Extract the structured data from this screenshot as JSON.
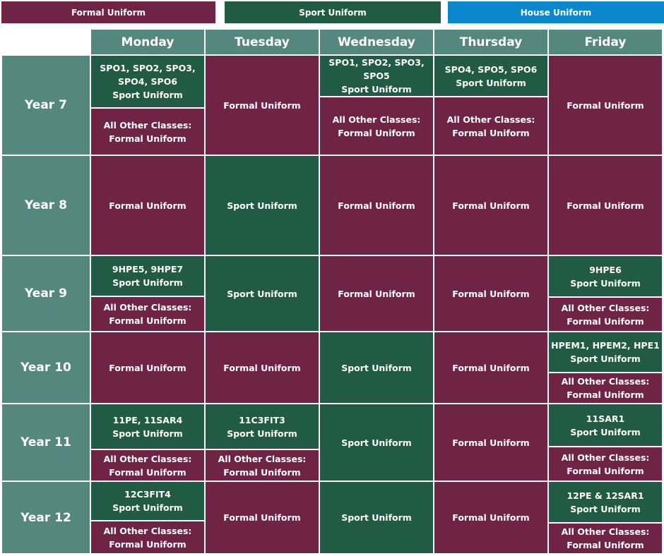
{
  "colors": {
    "formal": "#6f2345",
    "sport": "#225b45",
    "house": "#0b87cc",
    "header": "#54887e",
    "border": "#ffffff"
  },
  "legend": {
    "formal": "Formal Uniform",
    "sport": "Sport Uniform",
    "house": "House Uniform"
  },
  "days": [
    "Monday",
    "Tuesday",
    "Wednesday",
    "Thursday",
    "Friday"
  ],
  "years": [
    "Year 7",
    "Year 8",
    "Year 9",
    "Year 10",
    "Year 11",
    "Year 12"
  ],
  "schedule": [
    [
      [
        {
          "type": "sport",
          "lines": [
            "SPO1, SPO2, SPO3,",
            "SPO4, SPO6",
            "Sport Uniform"
          ]
        },
        {
          "type": "formal",
          "lines": [
            "All Other Classes:",
            "Formal  Uniform"
          ]
        }
      ],
      [
        {
          "type": "formal",
          "lines": [
            "Formal Uniform"
          ]
        }
      ],
      [
        {
          "type": "sport",
          "lines": [
            "SPO1, SPO2, SPO3, SPO5",
            "Sport Uniform"
          ]
        },
        {
          "type": "formal",
          "lines": [
            "All Other Classes:",
            "Formal  Uniform"
          ]
        }
      ],
      [
        {
          "type": "sport",
          "lines": [
            "SPO4, SPO5, SPO6",
            "Sport Uniform"
          ]
        },
        {
          "type": "formal",
          "lines": [
            "All Other Classes:",
            "Formal  Uniform"
          ]
        }
      ],
      [
        {
          "type": "formal",
          "lines": [
            "Formal Uniform"
          ]
        }
      ]
    ],
    [
      [
        {
          "type": "formal",
          "lines": [
            "Formal Uniform"
          ]
        }
      ],
      [
        {
          "type": "sport",
          "lines": [
            "Sport Uniform"
          ]
        }
      ],
      [
        {
          "type": "formal",
          "lines": [
            "Formal Uniform"
          ]
        }
      ],
      [
        {
          "type": "formal",
          "lines": [
            "Formal Uniform"
          ]
        }
      ],
      [
        {
          "type": "formal",
          "lines": [
            "Formal Uniform"
          ]
        }
      ]
    ],
    [
      [
        {
          "type": "sport",
          "lines": [
            "9HPE5, 9HPE7",
            "Sport Uniform"
          ]
        },
        {
          "type": "formal",
          "lines": [
            "All Other Classes:",
            "Formal  Uniform"
          ]
        }
      ],
      [
        {
          "type": "sport",
          "lines": [
            "Sport Uniform"
          ]
        }
      ],
      [
        {
          "type": "formal",
          "lines": [
            "Formal Uniform"
          ]
        }
      ],
      [
        {
          "type": "formal",
          "lines": [
            "Formal Uniform"
          ]
        }
      ],
      [
        {
          "type": "sport",
          "lines": [
            "9HPE6",
            "Sport Uniform"
          ]
        },
        {
          "type": "formal",
          "lines": [
            "All Other Classes:",
            "Formal  Uniform"
          ]
        }
      ]
    ],
    [
      [
        {
          "type": "formal",
          "lines": [
            "Formal Uniform"
          ]
        }
      ],
      [
        {
          "type": "formal",
          "lines": [
            "Formal Uniform"
          ]
        }
      ],
      [
        {
          "type": "sport",
          "lines": [
            "Sport Uniform"
          ]
        }
      ],
      [
        {
          "type": "formal",
          "lines": [
            "Formal Uniform"
          ]
        }
      ],
      [
        {
          "type": "sport",
          "lines": [
            "HPEM1, HPEM2, HPE1",
            "Sport Uniform"
          ]
        },
        {
          "type": "formal",
          "lines": [
            "All Other Classes:",
            "Formal  Uniform"
          ]
        }
      ]
    ],
    [
      [
        {
          "type": "sport",
          "lines": [
            "11PE, 11SAR4",
            "Sport Uniform"
          ]
        },
        {
          "type": "formal",
          "lines": [
            "All Other Classes:",
            "Formal  Uniform"
          ]
        }
      ],
      [
        {
          "type": "sport",
          "lines": [
            "11C3FIT3",
            "Sport Uniform"
          ]
        },
        {
          "type": "formal",
          "lines": [
            "All Other Classes:",
            "Formal  Uniform"
          ]
        }
      ],
      [
        {
          "type": "sport",
          "lines": [
            "Sport Uniform"
          ]
        }
      ],
      [
        {
          "type": "formal",
          "lines": [
            "Formal Uniform"
          ]
        }
      ],
      [
        {
          "type": "sport",
          "lines": [
            "11SAR1",
            "Sport Uniform"
          ]
        },
        {
          "type": "formal",
          "lines": [
            "All Other Classes:",
            "Formal  Uniform"
          ]
        }
      ]
    ],
    [
      [
        {
          "type": "sport",
          "lines": [
            "12C3FIT4",
            "Sport Uniform"
          ]
        },
        {
          "type": "formal",
          "lines": [
            "All Other Classes:",
            "Formal  Uniform"
          ]
        }
      ],
      [
        {
          "type": "formal",
          "lines": [
            "Formal Uniform"
          ]
        }
      ],
      [
        {
          "type": "sport",
          "lines": [
            "Sport Uniform"
          ]
        }
      ],
      [
        {
          "type": "formal",
          "lines": [
            "Formal Uniform"
          ]
        }
      ],
      [
        {
          "type": "sport",
          "lines": [
            "12PE & 12SAR1",
            "Sport Uniform"
          ]
        },
        {
          "type": "formal",
          "lines": [
            "All Other Classes:",
            "Formal  Uniform"
          ]
        }
      ]
    ]
  ]
}
